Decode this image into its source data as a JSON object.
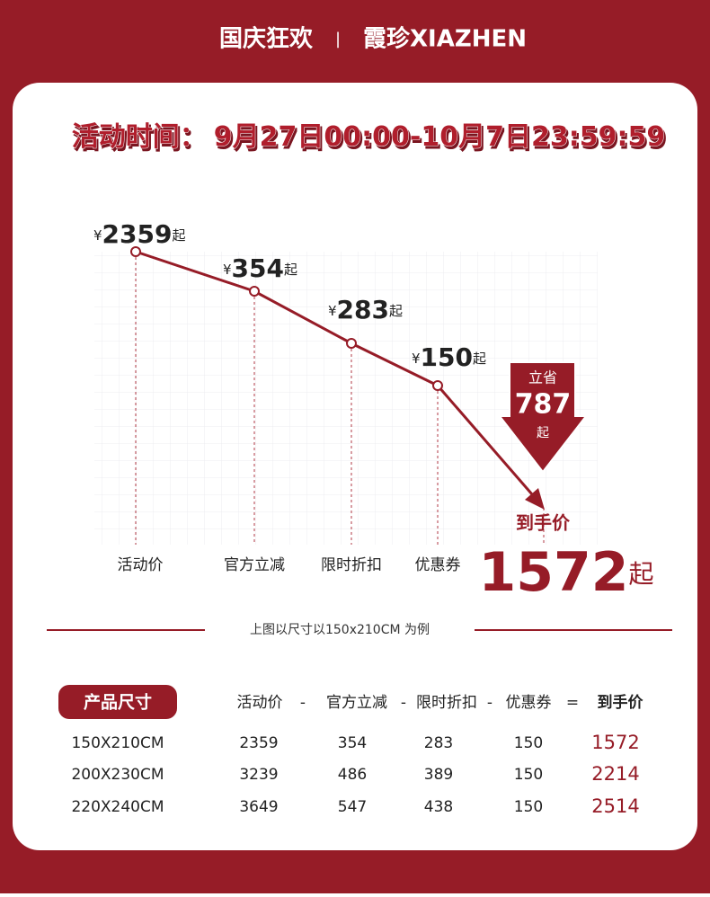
{
  "header": {
    "left": "国庆狂欢",
    "divider": "|",
    "brand": "霞珍XIAZHEN"
  },
  "event": {
    "label": "活动时间：",
    "time": "9月27日00:00-10月7日23:59:59"
  },
  "steps": [
    {
      "label": "活动价",
      "currency": "¥",
      "price": "2359",
      "unit": "起"
    },
    {
      "label": "官方立减",
      "currency": "¥",
      "price": "354",
      "unit": "起"
    },
    {
      "label": "限时折扣",
      "currency": "¥",
      "price": "283",
      "unit": "起"
    },
    {
      "label": "优惠券",
      "currency": "¥",
      "price": "150",
      "unit": "起"
    }
  ],
  "saving": {
    "top": "立省",
    "amount": "787",
    "unit": "起"
  },
  "final": {
    "label": "到手价",
    "price": "1572",
    "unit": "起"
  },
  "note": "上图以尺寸以150x210CM 为例",
  "table": {
    "headers": [
      "产品尺寸",
      "活动价",
      "-",
      "官方立减",
      "-",
      "限时折扣",
      "-",
      "优惠券",
      "=",
      "到手价"
    ],
    "rows": [
      [
        "150X210CM",
        "2359",
        "354",
        "283",
        "150",
        "1572"
      ],
      [
        "200X230CM",
        "3239",
        "486",
        "389",
        "150",
        "2214"
      ],
      [
        "220X240CM",
        "3649",
        "547",
        "438",
        "150",
        "2514"
      ]
    ]
  }
}
